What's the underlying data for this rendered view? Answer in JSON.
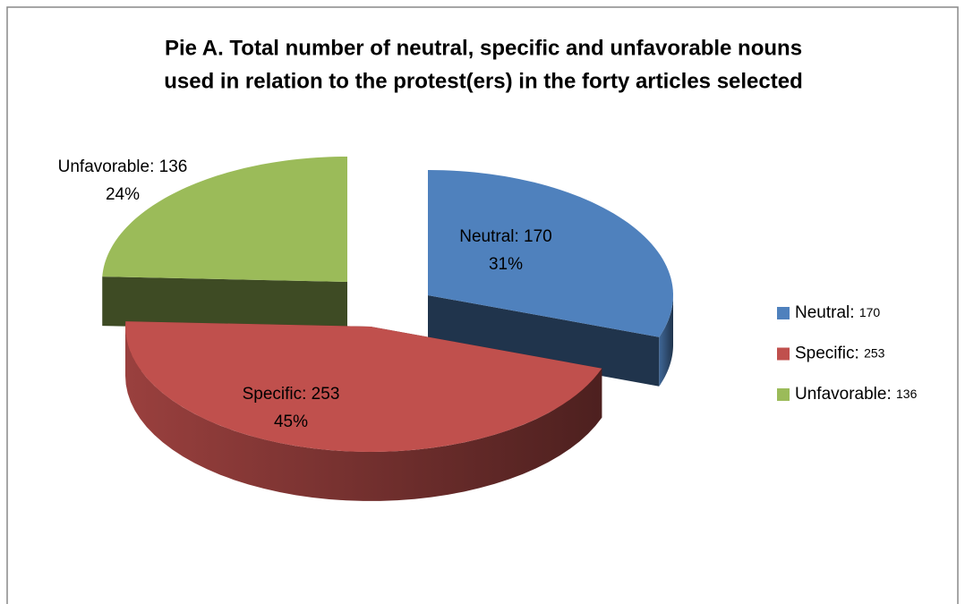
{
  "chart_data": {
    "type": "pie3d",
    "title": [
      "Pie A. Total number of neutral, specific and unfavorable nouns",
      "used in relation to the protest(ers) in the forty articles selected"
    ],
    "categories": [
      "Neutral",
      "Specific",
      "Unfavorable"
    ],
    "values": [
      170,
      253,
      136
    ],
    "value_labels": [
      "Neutral: 170",
      "Specific: 253",
      "Unfavorable: 136"
    ],
    "percent_labels": [
      "31%",
      "45%",
      "24%"
    ],
    "legend": [
      "Neutral:",
      "Specific:",
      "Unfavorable:"
    ],
    "colors": [
      "#4f81bd",
      "#c0504d",
      "#9bbb59"
    ],
    "legend_position": "right"
  }
}
